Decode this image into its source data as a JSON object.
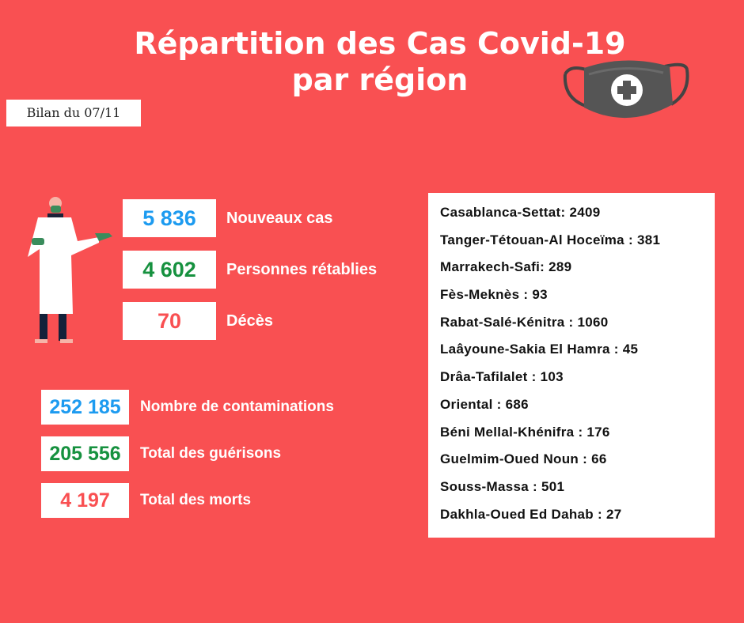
{
  "title": {
    "line1": "Répartition des Cas Covid-19",
    "line2": "par région"
  },
  "date_badge": "Bilan du 07/11",
  "icons": {
    "mask": "medical-mask-plus-icon",
    "doctor": "doctor-illustration"
  },
  "colors": {
    "background": "#f95052",
    "blue": "#1d9bf0",
    "green": "#16913f",
    "red": "#f95052"
  },
  "daily": [
    {
      "value": "5 836",
      "label": "Nouveaux cas",
      "color": "blue"
    },
    {
      "value": "4 602",
      "label": "Personnes rétablies",
      "color": "green"
    },
    {
      "value": "70",
      "label": "Décès",
      "color": "red"
    }
  ],
  "totals": [
    {
      "value": "252 185",
      "label": "Nombre de contaminations",
      "color": "blue"
    },
    {
      "value": "205 556",
      "label": "Total des guérisons",
      "color": "green"
    },
    {
      "value": "4 197",
      "label": "Total des morts",
      "color": "red"
    }
  ],
  "regions": [
    "Casablanca-Settat: 2409",
    "Tanger-Tétouan-Al Hoceïma : 381",
    "Marrakech-Safi: 289",
    "Fès-Meknès : 93",
    "Rabat-Salé-Kénitra : 1060",
    "Laâyoune-Sakia El Hamra : 45",
    "Drâa-Tafilalet : 103",
    "Oriental : 686",
    "Béni Mellal-Khénifra : 176",
    "Guelmim-Oued Noun : 66",
    "Souss-Massa : 501",
    "Dakhla-Oued Ed Dahab : 27"
  ]
}
